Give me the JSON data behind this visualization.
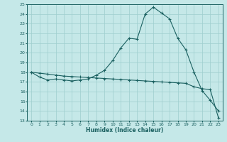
{
  "xlabel": "Humidex (Indice chaleur)",
  "ylabel": "",
  "background_color": "#c5e8e8",
  "grid_color": "#9ecece",
  "line_color": "#1a6060",
  "xlim": [
    -0.5,
    23.5
  ],
  "ylim": [
    13,
    25
  ],
  "xtick_labels": [
    "0",
    "1",
    "2",
    "3",
    "4",
    "5",
    "6",
    "7",
    "8",
    "9",
    "10",
    "11",
    "12",
    "13",
    "14",
    "15",
    "16",
    "17",
    "18",
    "19",
    "20",
    "21",
    "22",
    "23"
  ],
  "ytick_labels": [
    "13",
    "14",
    "15",
    "16",
    "17",
    "18",
    "19",
    "20",
    "21",
    "22",
    "23",
    "24",
    "25"
  ],
  "humidex_x": [
    0,
    1,
    2,
    3,
    4,
    5,
    6,
    7,
    8,
    9,
    10,
    11,
    12,
    13,
    14,
    15,
    16,
    17,
    18,
    19,
    20,
    21,
    22,
    23
  ],
  "humidex_y": [
    18.0,
    17.5,
    17.2,
    17.3,
    17.2,
    17.1,
    17.2,
    17.3,
    17.7,
    18.2,
    19.2,
    20.5,
    21.5,
    21.4,
    24.0,
    24.7,
    24.1,
    23.5,
    21.5,
    20.3,
    18.0,
    16.1,
    15.1,
    14.0
  ],
  "trend_x": [
    0,
    1,
    2,
    3,
    4,
    5,
    6,
    7,
    8,
    9,
    10,
    11,
    12,
    13,
    14,
    15,
    16,
    17,
    18,
    19,
    20,
    21,
    22,
    23
  ],
  "trend_y": [
    18.0,
    17.9,
    17.8,
    17.7,
    17.6,
    17.55,
    17.5,
    17.45,
    17.4,
    17.35,
    17.3,
    17.25,
    17.2,
    17.15,
    17.1,
    17.05,
    17.0,
    16.95,
    16.9,
    16.85,
    16.5,
    16.3,
    16.2,
    13.3
  ]
}
